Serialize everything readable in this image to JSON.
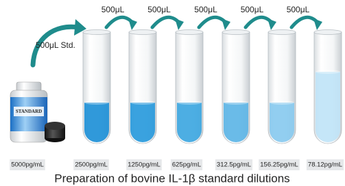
{
  "std_transfer": "500μL Std.",
  "transfers": [
    "500μL",
    "500μL",
    "500μL",
    "500μL",
    "500μL"
  ],
  "bottle_label": "STANDARD",
  "concentrations": [
    "5000pg/mL",
    "2500pg/mL",
    "1250pg/mL",
    "625pg/mL",
    "312.5pg/mL",
    "156.25pg/mL",
    "78.12pg/mL"
  ],
  "title": "Preparation of  bovine IL-1β standard dilutions"
}
